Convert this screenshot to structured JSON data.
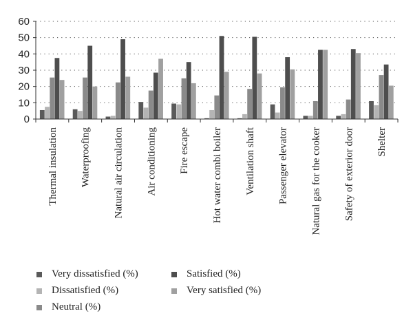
{
  "chart_data": {
    "type": "bar",
    "categories": [
      "Thermal insulation",
      "Waterproofing",
      "Natural air circulation",
      "Air conditioning",
      "Fire escape",
      "Hot water combi boiler",
      "Ventilation shaft",
      "Passenger elevator",
      "Natural gas for the cooker",
      "Safety of exterior door",
      "Shelter"
    ],
    "series": [
      {
        "name": "Very dissatisfied (%)",
        "color": "#5a5a5a",
        "values": [
          5.5,
          6,
          1.5,
          10.5,
          9.5,
          0.5,
          0.5,
          9,
          2,
          2,
          11
        ]
      },
      {
        "name": "Dissatisfied (%)",
        "color": "#b4b4b4",
        "values": [
          7.5,
          5,
          2,
          7,
          9,
          5.5,
          3,
          4,
          2,
          3,
          8.5
        ]
      },
      {
        "name": "Neutral (%)",
        "color": "#8a8a8a",
        "values": [
          25.5,
          25.5,
          22.5,
          17.5,
          25,
          14.5,
          18.5,
          19.5,
          11,
          12,
          27
        ]
      },
      {
        "name": "Satisfied (%)",
        "color": "#4e4e4e",
        "values": [
          37.5,
          45,
          49,
          28.5,
          35,
          51,
          50.5,
          38,
          42.5,
          43,
          33.5
        ]
      },
      {
        "name": "Very satisfied (%)",
        "color": "#a0a0a0",
        "values": [
          24,
          20,
          26,
          37,
          22,
          29,
          28,
          30.5,
          42.5,
          40.5,
          20.5
        ]
      }
    ],
    "yticks": [
      0,
      10,
      20,
      30,
      40,
      50,
      60
    ],
    "ylim": [
      0,
      60
    ],
    "grid": true,
    "legend": "bottom"
  }
}
